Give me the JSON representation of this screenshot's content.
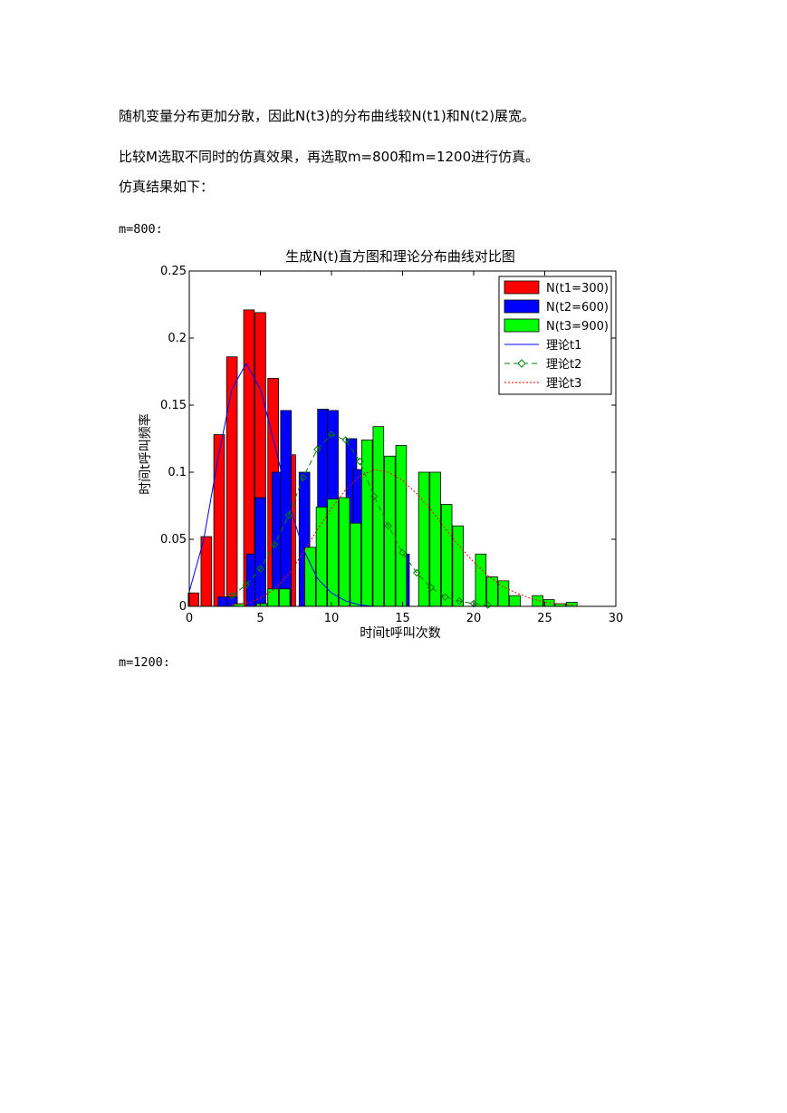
{
  "text": {
    "p1": "随机变量分布更加分散，因此N(t3)的分布曲线较N(t1)和N(t2)展宽。",
    "p2": "比较M选取不同时的仿真效果，再选取m=800和m=1200进行仿真。",
    "p3": "仿真结果如下：",
    "m800": "m=800:",
    "m1200": "m=1200:"
  },
  "chart_data": {
    "type": "bar",
    "title": "生成N(t)直方图和理论分布曲线对比图",
    "xlabel": "时间t呼叫次数",
    "ylabel": "时间t呼叫频率",
    "xlim": [
      0,
      30
    ],
    "ylim": [
      0,
      0.25
    ],
    "xticks": [
      0,
      5,
      10,
      15,
      20,
      25,
      30
    ],
    "yticks": [
      0,
      0.05,
      0.1,
      0.15,
      0.2,
      0.25
    ],
    "xtick_labels": [
      "0",
      "5",
      "10",
      "15",
      "20",
      "25",
      "30"
    ],
    "ytick_labels": [
      "0",
      "0.05",
      "0.1",
      "0.15",
      "0.2",
      "0.25"
    ],
    "grid": false,
    "legend": "top-right",
    "histograms": [
      {
        "name": "N(t1=300)",
        "color": "#ff0000",
        "bars": [
          [
            0.3,
            0.01
          ],
          [
            1.2,
            0.052
          ],
          [
            2.1,
            0.128
          ],
          [
            3.0,
            0.186
          ],
          [
            3.9,
            0.0
          ],
          [
            4.2,
            0.221
          ],
          [
            5.0,
            0.219
          ],
          [
            5.9,
            0.17
          ],
          [
            7.1,
            0.113
          ]
        ]
      },
      {
        "name": "N(t2=600)",
        "color": "#0000ff",
        "bars": [
          [
            2.4,
            0.007
          ],
          [
            3.0,
            0.007
          ],
          [
            4.4,
            0.039
          ],
          [
            5.0,
            0.081
          ],
          [
            6.2,
            0.1
          ],
          [
            6.8,
            0.146
          ],
          [
            8.1,
            0.1
          ],
          [
            9.4,
            0.147
          ],
          [
            10.1,
            0.146
          ],
          [
            11.4,
            0.125
          ],
          [
            11.9,
            0.102
          ],
          [
            15.1,
            0.039
          ]
        ]
      },
      {
        "name": "N(t3=900)",
        "color": "#00ff00",
        "bars": [
          [
            3.5,
            0.002
          ],
          [
            5.1,
            0.002
          ],
          [
            5.9,
            0.013
          ],
          [
            6.7,
            0.013
          ],
          [
            8.5,
            0.044
          ],
          [
            9.3,
            0.074
          ],
          [
            10.1,
            0.08
          ],
          [
            10.9,
            0.081
          ],
          [
            11.7,
            0.062
          ],
          [
            12.5,
            0.124
          ],
          [
            13.3,
            0.134
          ],
          [
            14.1,
            0.112
          ],
          [
            14.9,
            0.12
          ],
          [
            16.5,
            0.1
          ],
          [
            17.3,
            0.1
          ],
          [
            18.1,
            0.076
          ],
          [
            18.9,
            0.06
          ],
          [
            20.5,
            0.039
          ],
          [
            21.3,
            0.022
          ],
          [
            22.1,
            0.019
          ],
          [
            22.9,
            0.008
          ],
          [
            24.5,
            0.008
          ],
          [
            25.3,
            0.005
          ],
          [
            26.1,
            0.002
          ],
          [
            26.9,
            0.003
          ]
        ]
      }
    ],
    "series": [
      {
        "name": "理论t1",
        "color": "#0000ff",
        "style": "solid",
        "x": [
          0,
          1,
          2,
          3,
          4,
          5,
          6,
          7,
          8,
          9,
          10,
          11,
          12,
          13,
          14,
          15
        ],
        "values": [
          0.011,
          0.049,
          0.109,
          0.162,
          0.181,
          0.162,
          0.121,
          0.077,
          0.043,
          0.021,
          0.01,
          0.004,
          0.001,
          0.0,
          0.0,
          0.0
        ]
      },
      {
        "name": "理论t2",
        "color": "#008000",
        "style": "dashed-diamond",
        "x": [
          3,
          4,
          5,
          6,
          7,
          8,
          9,
          10,
          11,
          12,
          13,
          14,
          15,
          16,
          17,
          18,
          19,
          20,
          21
        ],
        "values": [
          0.008,
          0.016,
          0.028,
          0.046,
          0.068,
          0.096,
          0.117,
          0.128,
          0.124,
          0.108,
          0.082,
          0.06,
          0.04,
          0.025,
          0.014,
          0.007,
          0.004,
          0.002,
          0.001
        ]
      },
      {
        "name": "理论t3",
        "color": "#ff0000",
        "style": "dotted",
        "x": [
          3,
          4,
          5,
          6,
          7,
          8,
          9,
          10,
          11,
          12,
          13,
          14,
          15,
          16,
          17,
          18,
          19,
          20,
          21,
          22,
          23,
          24,
          25,
          26,
          27
        ],
        "values": [
          0.001,
          0.002,
          0.006,
          0.013,
          0.024,
          0.04,
          0.057,
          0.073,
          0.087,
          0.097,
          0.102,
          0.1,
          0.094,
          0.084,
          0.072,
          0.058,
          0.045,
          0.033,
          0.023,
          0.015,
          0.01,
          0.006,
          0.003,
          0.002,
          0.001
        ]
      }
    ]
  }
}
